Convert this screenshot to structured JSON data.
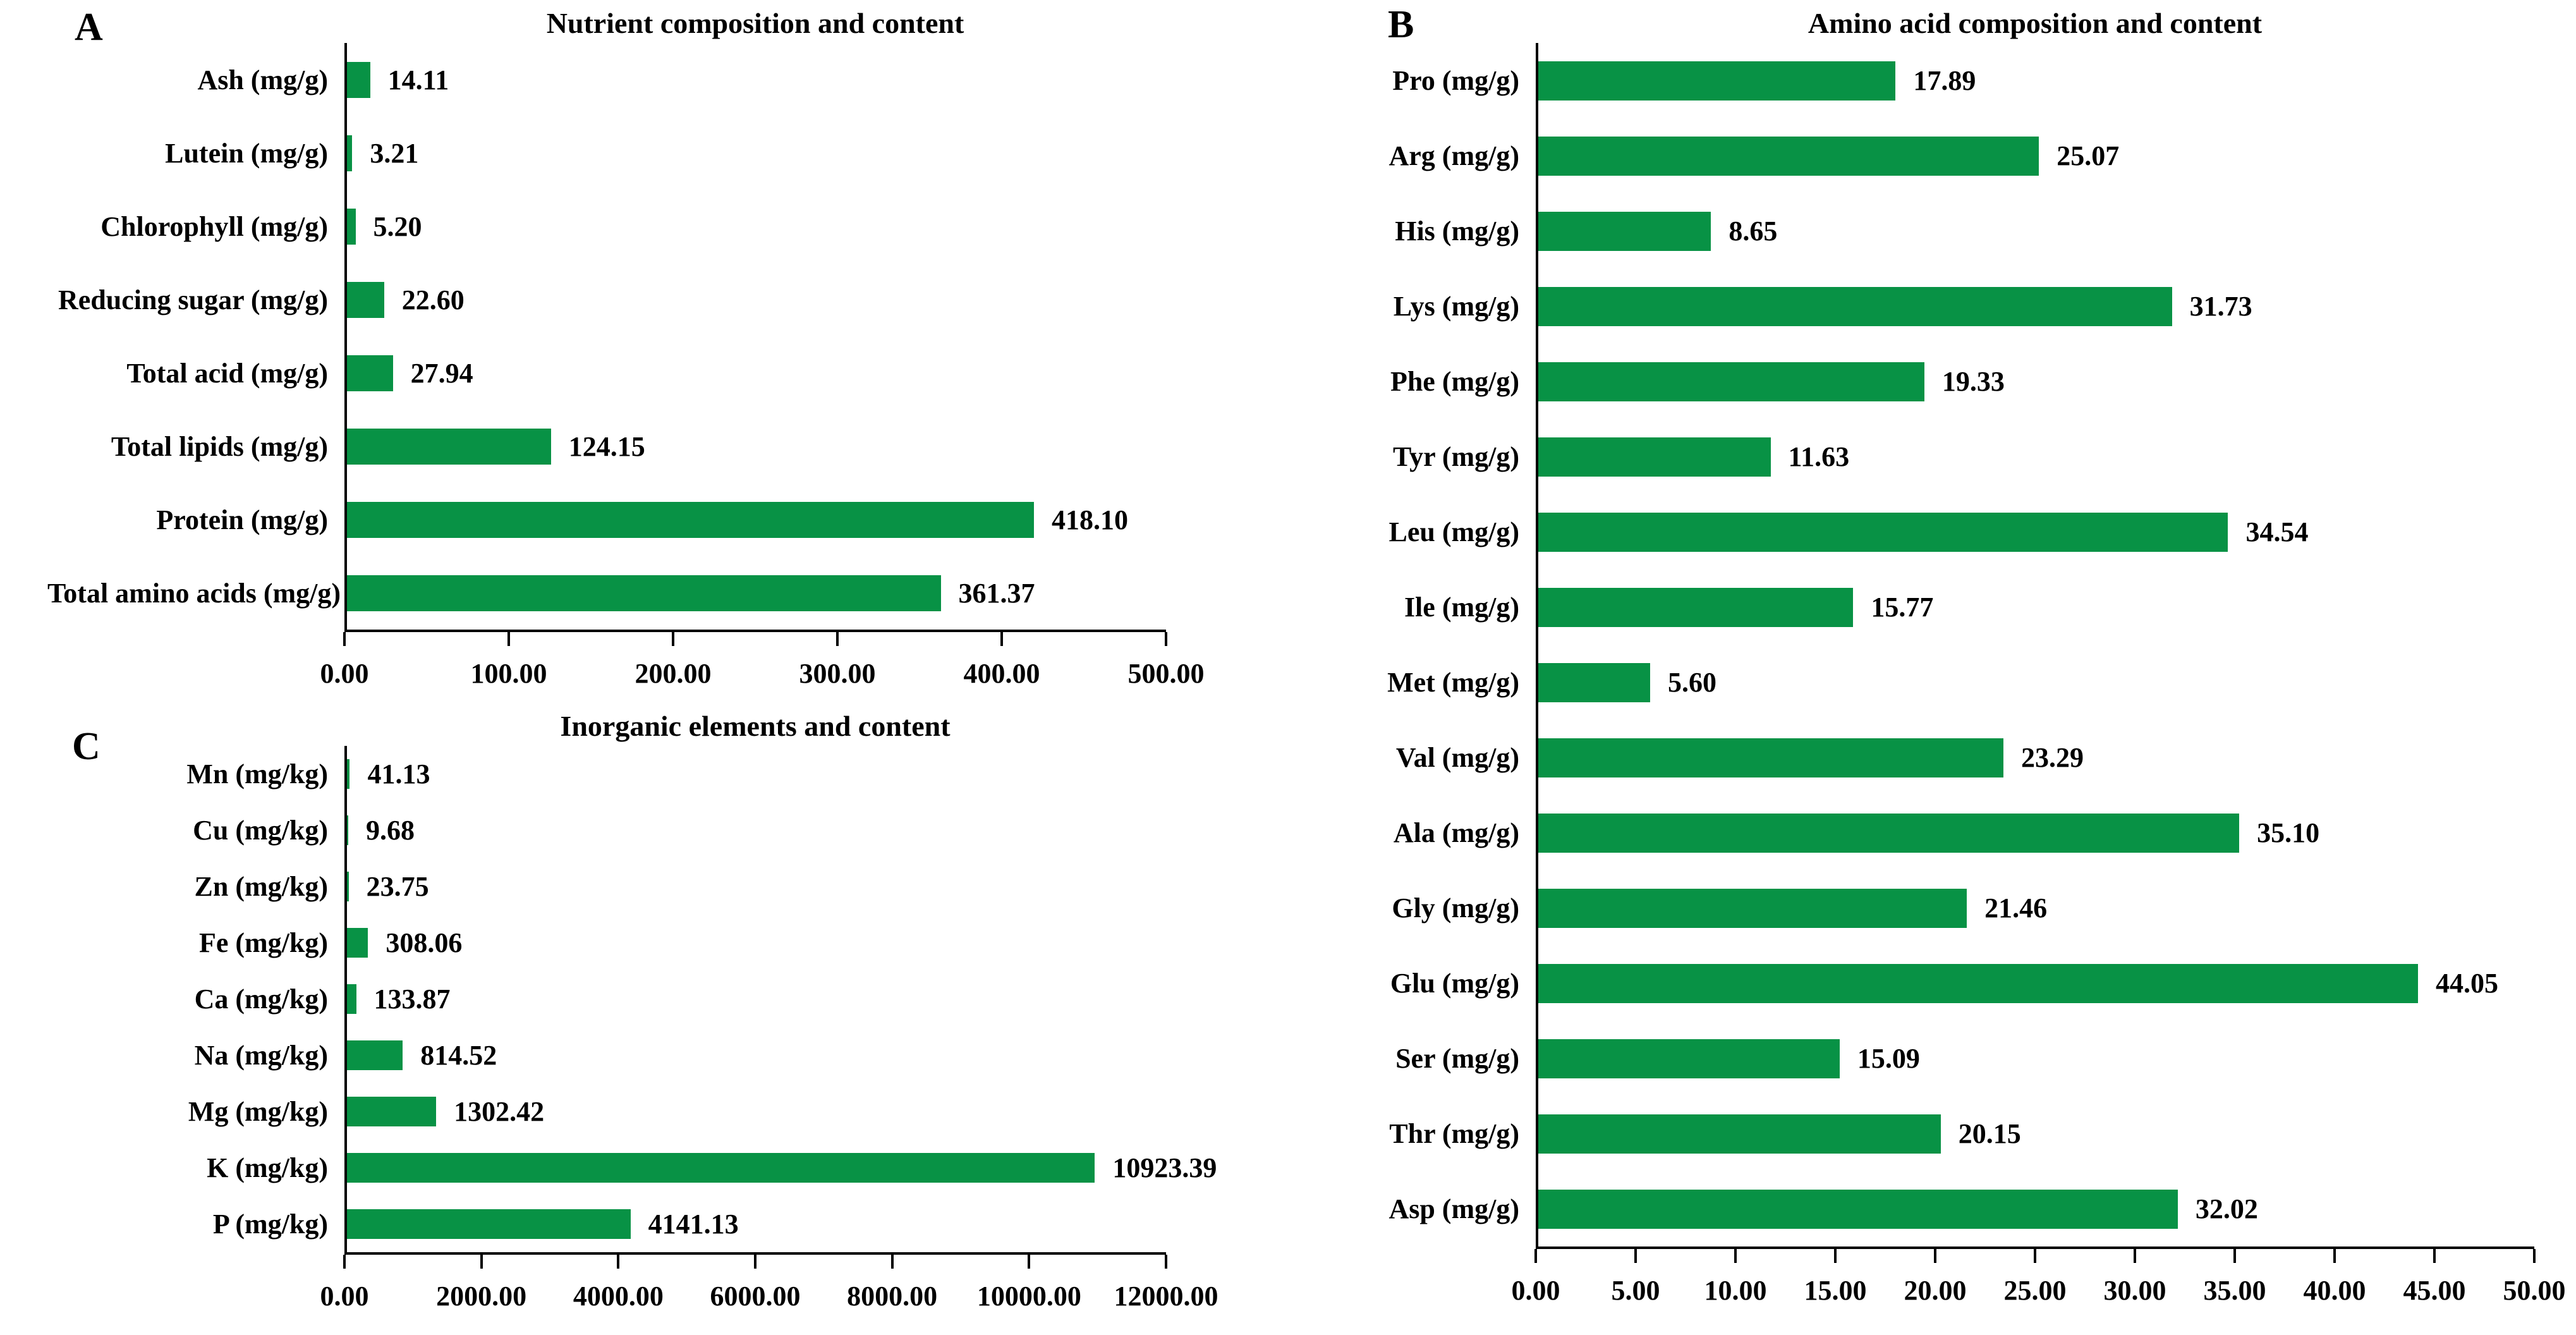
{
  "figure": {
    "background": "#ffffff",
    "bar_color": "#089245",
    "axis_color": "#000000",
    "text_color": "#000000"
  },
  "chart_data": [
    {
      "type": "bar",
      "orientation": "horizontal",
      "panel": "A",
      "title": "Nutrient composition and content",
      "categories": [
        "Ash (mg/g)",
        "Lutein (mg/g)",
        "Chlorophyll (mg/g)",
        "Reducing sugar (mg/g)",
        "Total acid (mg/g)",
        "Total lipids (mg/g)",
        "Protein (mg/g)",
        "Total amino acids (mg/g)"
      ],
      "values": [
        14.11,
        3.21,
        5.2,
        22.6,
        27.94,
        124.15,
        418.1,
        361.37
      ],
      "value_labels": [
        "14.11",
        "3.21",
        "5.20",
        "22.60",
        "27.94",
        "124.15",
        "418.10",
        "361.37"
      ],
      "xlabel": "",
      "ylabel": "",
      "xlim": [
        0,
        500
      ],
      "x_ticks": [
        "0.00",
        "100.00",
        "200.00",
        "300.00",
        "400.00",
        "500.00"
      ],
      "grid": false,
      "legend_position": "none"
    },
    {
      "type": "bar",
      "orientation": "horizontal",
      "panel": "B",
      "title": "Amino acid composition and content",
      "categories": [
        "Pro (mg/g)",
        "Arg (mg/g)",
        "His (mg/g)",
        "Lys (mg/g)",
        "Phe (mg/g)",
        "Tyr (mg/g)",
        "Leu (mg/g)",
        "Ile (mg/g)",
        "Met (mg/g)",
        "Val (mg/g)",
        "Ala (mg/g)",
        "Gly (mg/g)",
        "Glu (mg/g)",
        "Ser (mg/g)",
        "Thr (mg/g)",
        "Asp (mg/g)"
      ],
      "values": [
        17.89,
        25.07,
        8.65,
        31.73,
        19.33,
        11.63,
        34.54,
        15.77,
        5.6,
        23.29,
        35.1,
        21.46,
        44.05,
        15.09,
        20.15,
        32.02
      ],
      "value_labels": [
        "17.89",
        "25.07",
        "8.65",
        "31.73",
        "19.33",
        "11.63",
        "34.54",
        "15.77",
        "5.60",
        "23.29",
        "35.10",
        "21.46",
        "44.05",
        "15.09",
        "20.15",
        "32.02"
      ],
      "xlabel": "",
      "ylabel": "",
      "xlim": [
        0,
        50
      ],
      "x_ticks": [
        "0.00",
        "5.00",
        "10.00",
        "15.00",
        "20.00",
        "25.00",
        "30.00",
        "35.00",
        "40.00",
        "45.00",
        "50.00"
      ],
      "grid": false,
      "legend_position": "none"
    },
    {
      "type": "bar",
      "orientation": "horizontal",
      "panel": "C",
      "title": "Inorganic elements and content",
      "categories": [
        "Mn (mg/kg)",
        "Cu (mg/kg)",
        "Zn (mg/kg)",
        "Fe (mg/kg)",
        "Ca (mg/kg)",
        "Na (mg/kg)",
        "Mg (mg/kg)",
        "K (mg/kg)",
        "P (mg/kg)"
      ],
      "values": [
        41.13,
        9.68,
        23.75,
        308.06,
        133.87,
        814.52,
        1302.42,
        10923.39,
        4141.13
      ],
      "value_labels": [
        "41.13",
        "9.68",
        "23.75",
        "308.06",
        "133.87",
        "814.52",
        "1302.42",
        "10923.39",
        "4141.13"
      ],
      "xlabel": "",
      "ylabel": "",
      "xlim": [
        0,
        12000
      ],
      "x_ticks": [
        "0.00",
        "2000.00",
        "4000.00",
        "6000.00",
        "8000.00",
        "10000.00",
        "12000.00"
      ],
      "grid": false,
      "legend_position": "none"
    }
  ]
}
